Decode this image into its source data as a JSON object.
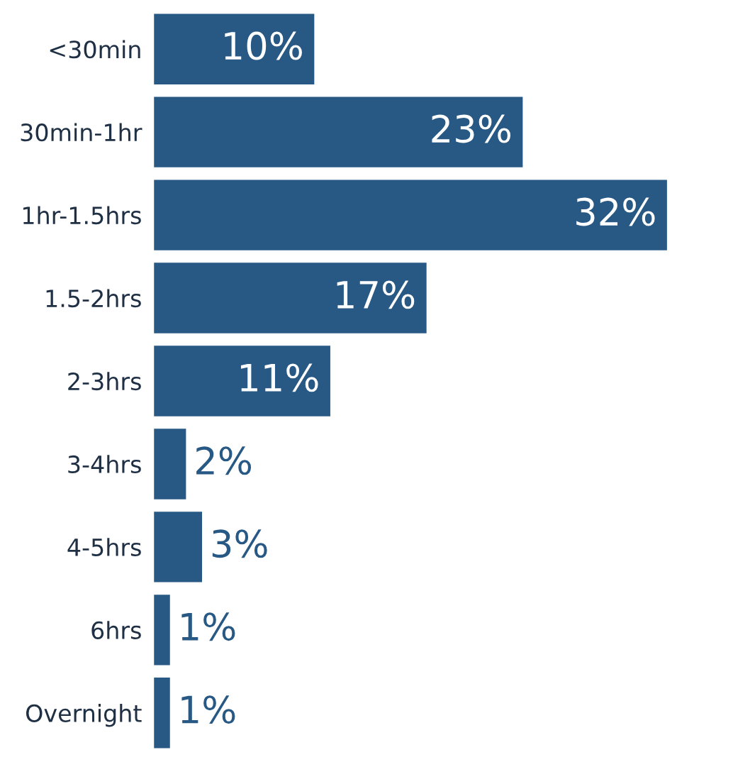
{
  "chart_data": {
    "type": "bar",
    "orientation": "horizontal",
    "categories": [
      "<30min",
      "30min-1hr",
      "1hr-1.5hrs",
      "1.5-2hrs",
      "2-3hrs",
      "3-4hrs",
      "4-5hrs",
      "6hrs",
      "Overnight"
    ],
    "values": [
      10,
      23,
      32,
      17,
      11,
      2,
      3,
      1,
      1
    ],
    "value_labels": [
      "10%",
      "23%",
      "32%",
      "17%",
      "11%",
      "2%",
      "3%",
      "1%",
      "1%"
    ],
    "color": "#285985",
    "tick_labels": "y"
  }
}
